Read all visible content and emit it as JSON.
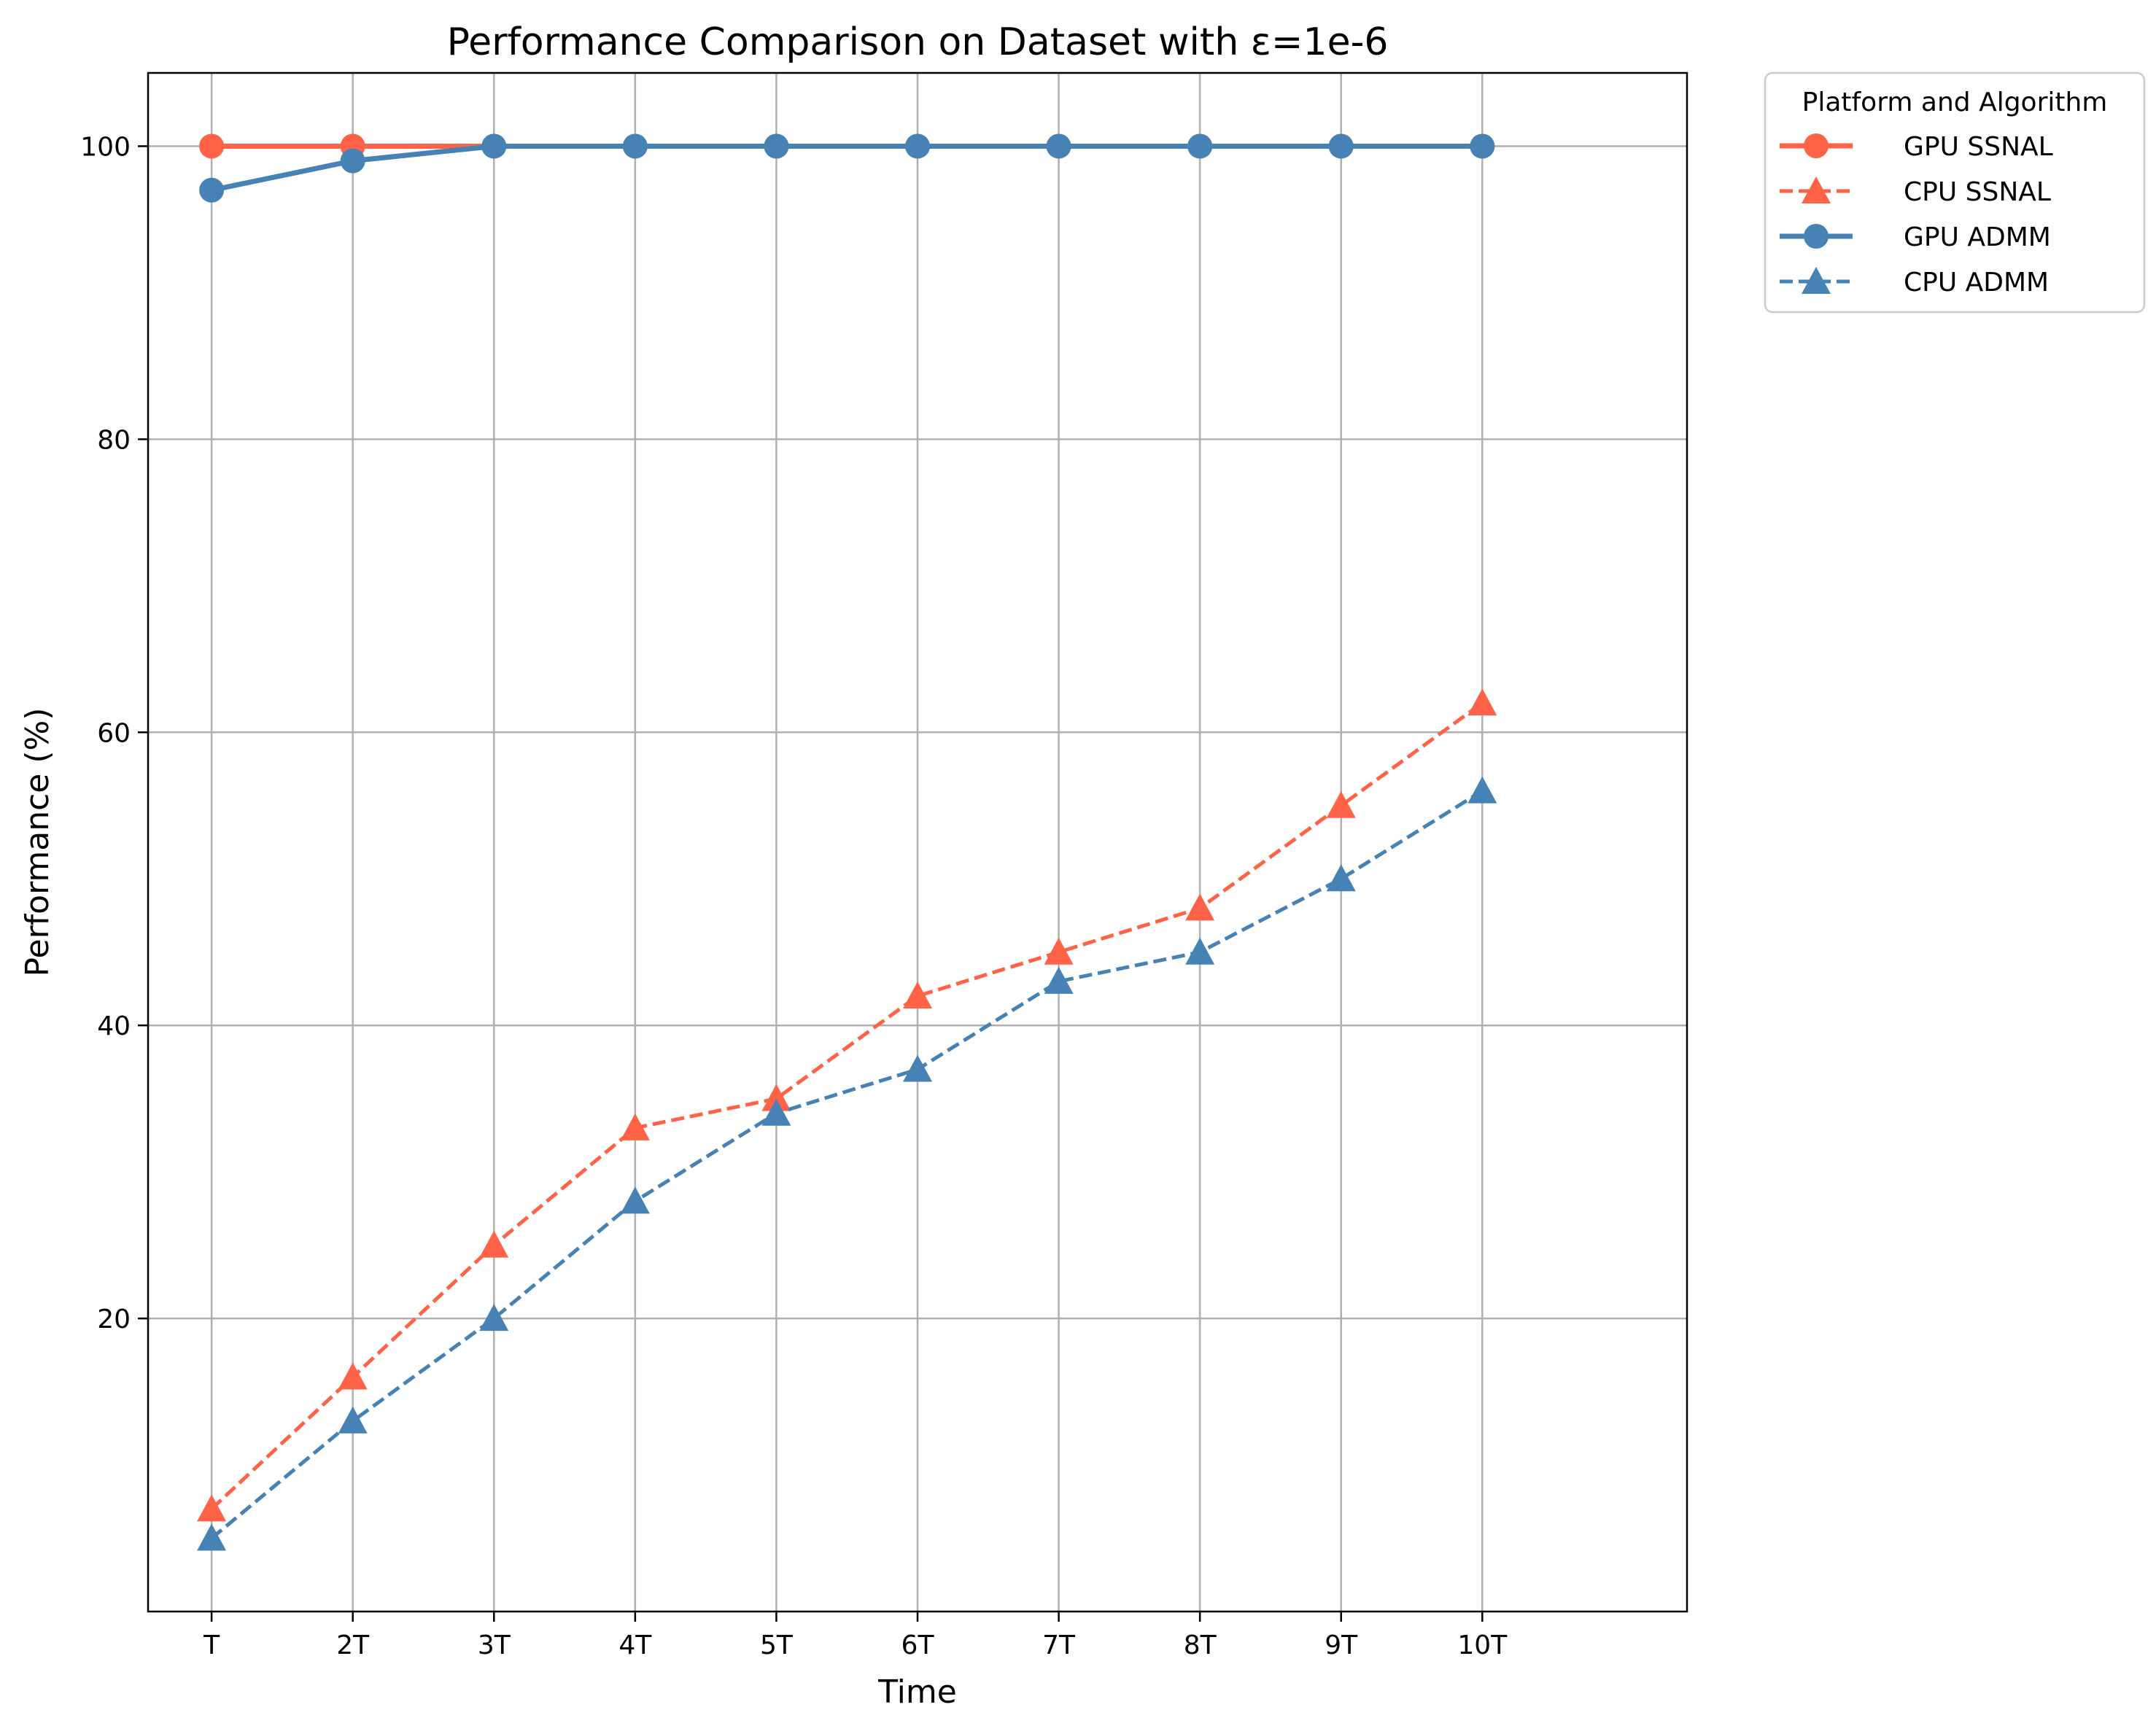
{
  "chart_data": {
    "type": "line",
    "title": "Performance Comparison on Dataset with ε=1e-6",
    "xlabel": "Time",
    "ylabel": "Performance (%)",
    "categories": [
      "T",
      "2T",
      "3T",
      "4T",
      "5T",
      "6T",
      "7T",
      "8T",
      "9T",
      "10T"
    ],
    "ylim": [
      0,
      105
    ],
    "yticks": [
      20,
      40,
      60,
      80,
      100
    ],
    "grid": true,
    "legend": {
      "title": "Platform and Algorithm",
      "placement": "outside top-right"
    },
    "series": [
      {
        "name": "GPU SSNAL",
        "color": "#ff6347",
        "linestyle": "solid",
        "marker": "circle",
        "values": [
          100,
          100,
          100,
          100,
          100,
          100,
          100,
          100,
          100,
          100
        ]
      },
      {
        "name": "CPU SSNAL",
        "color": "#ff6347",
        "linestyle": "dashed",
        "marker": "triangle",
        "values": [
          7,
          16,
          25,
          33,
          35,
          42,
          45,
          48,
          55,
          62
        ]
      },
      {
        "name": "GPU ADMM",
        "color": "#4682b4",
        "linestyle": "solid",
        "marker": "circle",
        "values": [
          97,
          99,
          100,
          100,
          100,
          100,
          100,
          100,
          100,
          100
        ]
      },
      {
        "name": "CPU ADMM",
        "color": "#4682b4",
        "linestyle": "dashed",
        "marker": "triangle",
        "values": [
          5,
          13,
          20,
          28,
          34,
          37,
          43,
          45,
          50,
          56
        ]
      }
    ]
  }
}
